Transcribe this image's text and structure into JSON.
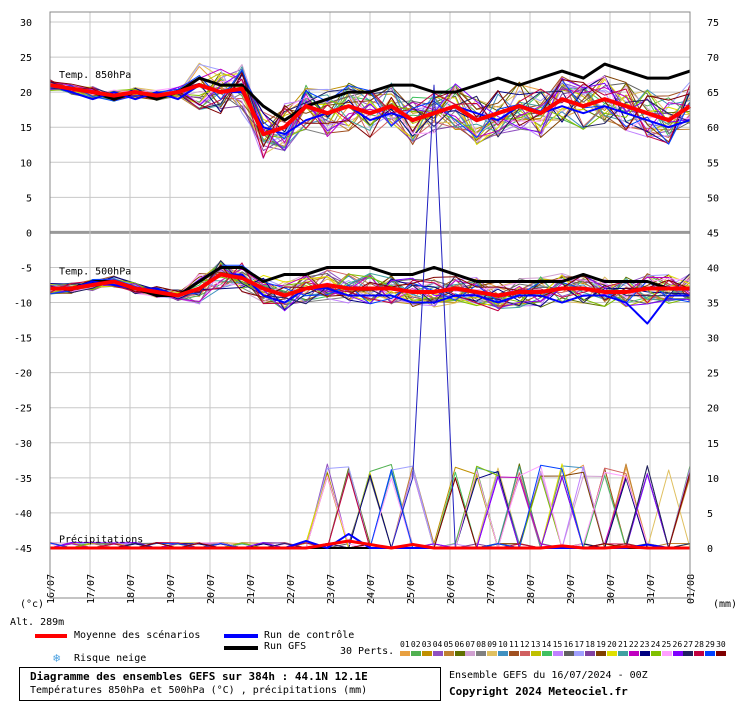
{
  "chart_data": {
    "type": "line",
    "dates": [
      "16/07",
      "17/07",
      "18/07",
      "19/07",
      "20/07",
      "21/07",
      "22/07",
      "23/07",
      "24/07",
      "25/07",
      "26/07",
      "27/07",
      "28/07",
      "29/07",
      "30/07",
      "31/07",
      "01/08"
    ],
    "left_ticks": [
      30,
      25,
      20,
      15,
      10,
      5,
      0,
      -5,
      -10,
      -15,
      -20,
      -25,
      -30,
      -35,
      -40,
      -45
    ],
    "right_ticks": [
      75,
      70,
      65,
      60,
      55,
      50,
      45,
      40,
      35,
      30,
      25,
      20,
      15,
      10,
      5,
      0
    ],
    "left_unit": "(°c)",
    "right_unit": "(mm)",
    "panels": {
      "t850": {
        "label": "Temp. 850hPa",
        "mean": [
          21,
          20.5,
          20,
          19.5,
          20,
          19.5,
          20,
          21,
          20,
          20.5,
          14,
          15,
          18,
          17,
          18,
          17,
          18,
          16,
          17,
          18,
          16,
          17,
          18,
          17,
          19,
          18,
          19,
          18,
          17,
          16,
          18
        ],
        "control": [
          21,
          20,
          19,
          20,
          19,
          20,
          19,
          21,
          20,
          20,
          15,
          14,
          16,
          17,
          18,
          16,
          17,
          16,
          17,
          18,
          17,
          16,
          18,
          17,
          18,
          17,
          18,
          17,
          16,
          15,
          16
        ],
        "gfs": [
          21,
          20.5,
          20,
          19,
          20,
          19,
          20,
          22,
          21,
          21,
          18,
          16,
          18,
          19,
          20,
          20,
          21,
          21,
          20,
          20,
          21,
          22,
          21,
          22,
          23,
          22,
          24,
          23,
          22,
          22,
          23
        ]
      },
      "t500": {
        "label": "Temp. 500hPa",
        "mean": [
          -8,
          -8,
          -7.5,
          -7,
          -8,
          -8.5,
          -9,
          -8,
          -6,
          -6.5,
          -8,
          -9,
          -8,
          -7.5,
          -8,
          -8,
          -8,
          -8.5,
          -8.5,
          -8,
          -8.5,
          -9,
          -8.5,
          -8.5,
          -8,
          -8,
          -8.5,
          -8.5,
          -8,
          -8,
          -8
        ],
        "control": [
          -8,
          -8,
          -7,
          -7.5,
          -8,
          -8,
          -9,
          -8,
          -6,
          -6,
          -9,
          -10,
          -8,
          -8,
          -9,
          -9,
          -9,
          -10,
          -10,
          -9,
          -9,
          -10,
          -9,
          -9,
          -10,
          -9,
          -9,
          -10,
          -13,
          -9,
          -9
        ],
        "gfs": [
          -8,
          -8,
          -7,
          -7,
          -8,
          -9,
          -9,
          -7,
          -5,
          -5,
          -7,
          -6,
          -6,
          -5,
          -5,
          -5,
          -6,
          -6,
          -5,
          -6,
          -7,
          -7,
          -7,
          -7,
          -7,
          -6,
          -7,
          -7,
          -7,
          -8,
          -8
        ]
      },
      "precip": {
        "label": "Précipitations",
        "mean": [
          0,
          0,
          0,
          0,
          0,
          0,
          0,
          0,
          0,
          0,
          0,
          0,
          0,
          0.5,
          1,
          0.5,
          0,
          0.5,
          0,
          0,
          0,
          0,
          0,
          0,
          0.3,
          0,
          0,
          0.2,
          0,
          0,
          0
        ],
        "control": [
          0,
          0,
          0,
          0,
          0,
          0,
          0,
          0,
          0,
          0,
          0,
          0,
          1,
          0,
          2,
          0,
          0,
          0,
          0,
          0,
          0,
          0,
          0,
          0,
          0,
          0,
          0,
          0,
          0.5,
          0,
          0
        ],
        "gfs": [
          0,
          0,
          0,
          0,
          0,
          0,
          0,
          0,
          0,
          0,
          0,
          0,
          0,
          0,
          0,
          0,
          0,
          0,
          0,
          0,
          0,
          0,
          0,
          0,
          0,
          0,
          0,
          0,
          0,
          0,
          0
        ]
      }
    }
  },
  "altitude": "Alt. 289m",
  "legend": {
    "mean": "Moyenne des scénarios",
    "control": "Run de contrôle",
    "gfs": "Run GFS",
    "snow": "Risque neige",
    "perts": "30 Perts.",
    "pert_numbers": [
      "01",
      "02",
      "03",
      "04",
      "05",
      "06",
      "07",
      "08",
      "09",
      "10",
      "11",
      "12",
      "13",
      "14",
      "15",
      "16",
      "17",
      "18",
      "19",
      "20",
      "21",
      "22",
      "23",
      "24",
      "25",
      "26",
      "27",
      "28",
      "29",
      "30"
    ],
    "pert_colors": [
      "#e8a040",
      "#50b050",
      "#c09000",
      "#9050c0",
      "#c08030",
      "#607000",
      "#d0a0d0",
      "#808080",
      "#e0c060",
      "#4090c0",
      "#a05020",
      "#d06060",
      "#c0c000",
      "#40c060",
      "#c080ff",
      "#606060",
      "#a0a0ff",
      "#8040a0",
      "#804000",
      "#e0e000",
      "#40a0a0",
      "#c000c0",
      "#000080",
      "#80c000",
      "#ffa0ff",
      "#8000ff",
      "#202060",
      "#c00040",
      "#0040ff",
      "#800000"
    ]
  },
  "title": {
    "line1": "Diagramme des ensembles GEFS sur 384h : 44.1N 12.1E",
    "line2": "Températures 850hPa et 500hPa (°C) , précipitations (mm)"
  },
  "run_info": "Ensemble GEFS du 16/07/2024 - 00Z",
  "copyright": "Copyright 2024 Meteociel.fr"
}
